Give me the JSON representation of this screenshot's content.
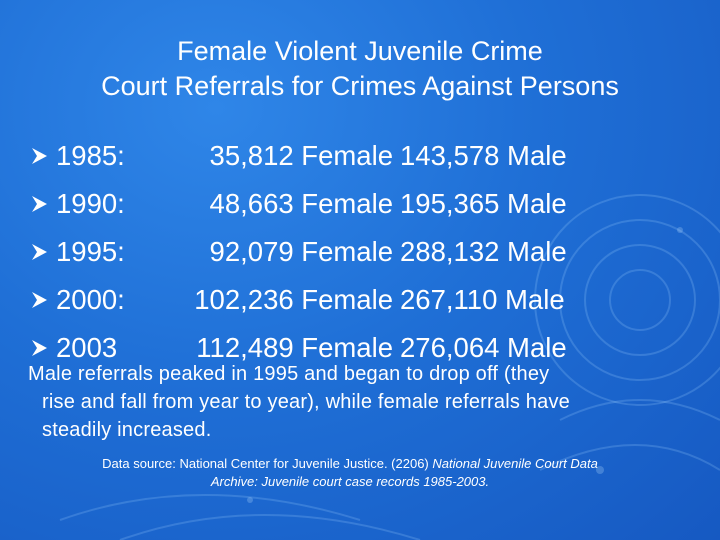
{
  "title": {
    "line1": "Female Violent Juvenile Crime",
    "line2": "Court Referrals for Crimes Against Persons"
  },
  "rows": [
    {
      "year": "1985:",
      "female": "35,812 Female",
      "male": "143,578 Male"
    },
    {
      "year": "1990:",
      "female": "48,663 Female",
      "male": "195,365 Male"
    },
    {
      "year": "1995:",
      "female": "92,079 Female",
      "male": "288,132 Male"
    },
    {
      "year": "2000:",
      "female": "102,236 Female",
      "male": "267,110 Male"
    },
    {
      "year": "2003",
      "female": "112,489 Female",
      "male": "276,064 Male"
    }
  ],
  "summary": {
    "line1": "Male referrals peaked in 1995 and began to drop off (they",
    "line2": "rise and fall from year to year), while female referrals have",
    "line3": "steadily increased."
  },
  "source": {
    "prefix": "Data source: National Center for Juvenile Justice. (2206) ",
    "italic1": "National Juvenile Court Data",
    "italic2": "Archive: Juvenile court case records 1985-2003."
  },
  "colors": {
    "background": "#1f6fd6",
    "text": "#ffffff",
    "bullet": "#ffffff"
  },
  "icons": {
    "bullet": "arrowhead-bullet-icon"
  }
}
